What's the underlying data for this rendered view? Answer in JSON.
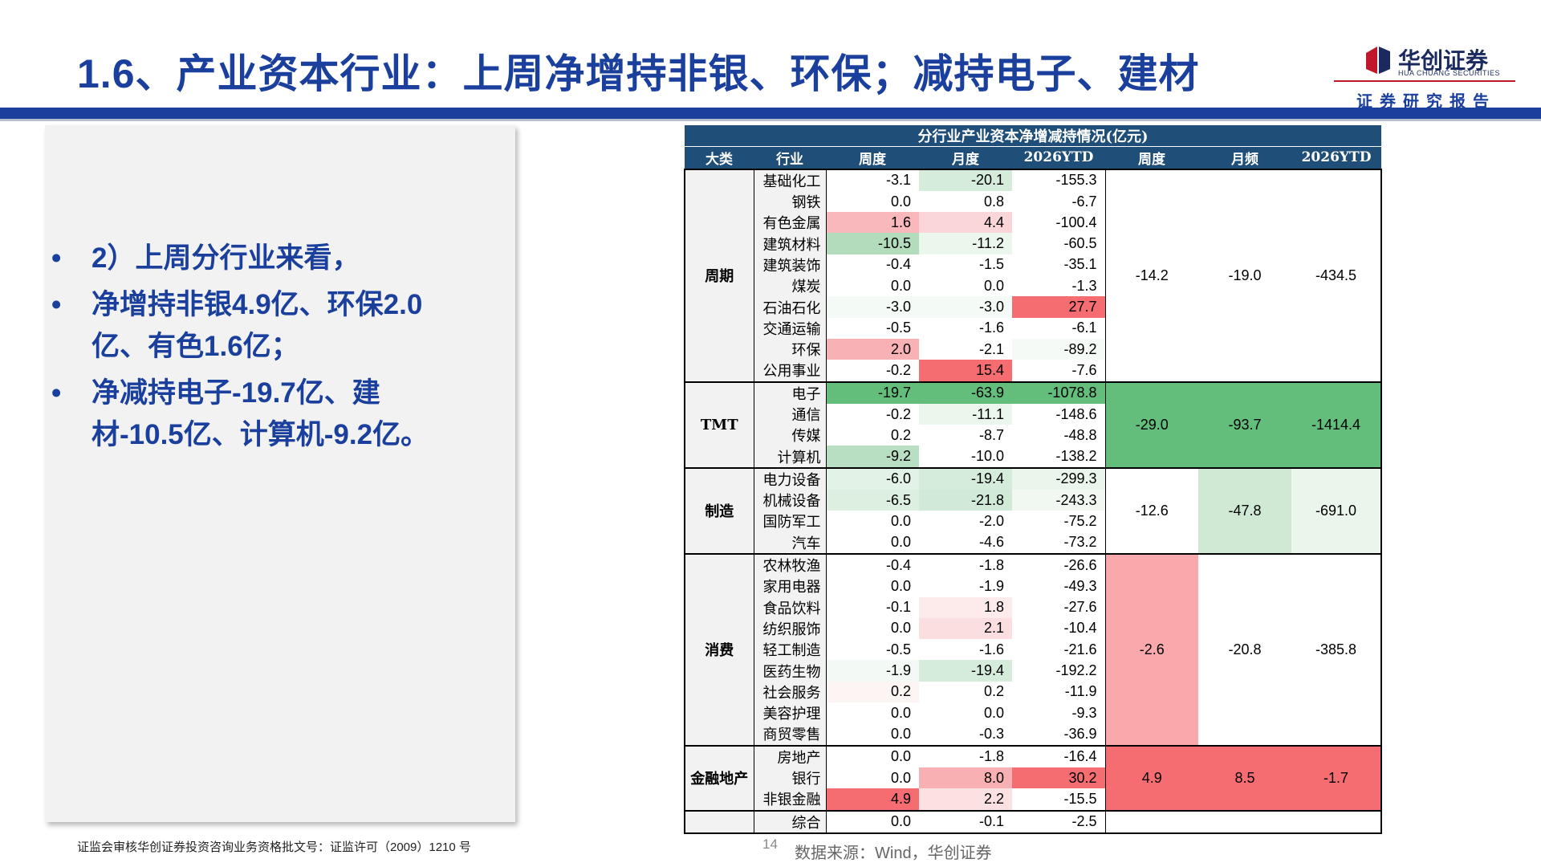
{
  "header": {
    "title": "1.6、产业资本行业：上周净增持非银、环保；减持电子、建材",
    "logo_cn": "华创证券",
    "logo_en": "HUA CHUANG SECURITIES",
    "report_label": "证券研究报告"
  },
  "bullets": [
    "2）上周分行业来看，",
    "净增持非银4.9亿、环保2.0亿、有色1.6亿；",
    "净减持电子-19.7亿、建材-10.5亿、计算机-9.2亿。"
  ],
  "table": {
    "title": "分行业产业资本净增减持情况(亿元)",
    "headers": [
      "大类",
      "行业",
      "周度",
      "月度",
      "2026YTD",
      "周度",
      "月频",
      "2026YTD"
    ],
    "groups": [
      {
        "category": "周期",
        "summary": {
          "week": "-14.2",
          "month": "-19.0",
          "ytd": "-434.5",
          "week_color": "#ffffff",
          "month_color": "#ffffff",
          "ytd_color": "#ffffff"
        },
        "rows": [
          {
            "industry": "基础化工",
            "week": "-3.1",
            "month": "-20.1",
            "ytd": "-155.3",
            "week_color": "#ffffff",
            "month_color": "#d4ecd9",
            "ytd_color": "#ffffff"
          },
          {
            "industry": "钢铁",
            "week": "0.0",
            "month": "0.8",
            "ytd": "-6.7",
            "week_color": "#ffffff",
            "month_color": "#ffffff",
            "ytd_color": "#ffffff"
          },
          {
            "industry": "有色金属",
            "week": "1.6",
            "month": "4.4",
            "ytd": "-100.4",
            "week_color": "#f9b9bc",
            "month_color": "#fbd6d8",
            "ytd_color": "#ffffff"
          },
          {
            "industry": "建筑材料",
            "week": "-10.5",
            "month": "-11.2",
            "ytd": "-60.5",
            "week_color": "#b3dcbd",
            "month_color": "#ebf6ed",
            "ytd_color": "#ffffff"
          },
          {
            "industry": "建筑装饰",
            "week": "-0.4",
            "month": "-1.5",
            "ytd": "-35.1",
            "week_color": "#ffffff",
            "month_color": "#ffffff",
            "ytd_color": "#ffffff"
          },
          {
            "industry": "煤炭",
            "week": "0.0",
            "month": "0.0",
            "ytd": "-1.3",
            "week_color": "#ffffff",
            "month_color": "#ffffff",
            "ytd_color": "#ffffff"
          },
          {
            "industry": "石油石化",
            "week": "-3.0",
            "month": "-3.0",
            "ytd": "27.7",
            "week_color": "#f4faf5",
            "month_color": "#f4faf5",
            "ytd_color": "#f66d71"
          },
          {
            "industry": "交通运输",
            "week": "-0.5",
            "month": "-1.6",
            "ytd": "-6.1",
            "week_color": "#ffffff",
            "month_color": "#ffffff",
            "ytd_color": "#ffffff"
          },
          {
            "industry": "环保",
            "week": "2.0",
            "month": "-2.1",
            "ytd": "-89.2",
            "week_color": "#f8b1b4",
            "month_color": "#ffffff",
            "ytd_color": "#f5faf6"
          },
          {
            "industry": "公用事业",
            "week": "-0.2",
            "month": "15.4",
            "ytd": "-7.6",
            "week_color": "#ffffff",
            "month_color": "#f66d71",
            "ytd_color": "#ffffff"
          }
        ]
      },
      {
        "category": "TMT",
        "summary": {
          "week": "-29.0",
          "month": "-93.7",
          "ytd": "-1414.4",
          "week_color": "#63be7b",
          "month_color": "#63be7b",
          "ytd_color": "#63be7b"
        },
        "rows": [
          {
            "industry": "电子",
            "week": "-19.7",
            "month": "-63.9",
            "ytd": "-1078.8",
            "week_color": "#63be7b",
            "month_color": "#63be7b",
            "ytd_color": "#63be7b"
          },
          {
            "industry": "通信",
            "week": "-0.2",
            "month": "-11.1",
            "ytd": "-148.6",
            "week_color": "#ffffff",
            "month_color": "#ebf6ed",
            "ytd_color": "#ffffff"
          },
          {
            "industry": "传媒",
            "week": "0.2",
            "month": "-8.7",
            "ytd": "-48.8",
            "week_color": "#ffffff",
            "month_color": "#ffffff",
            "ytd_color": "#ffffff"
          },
          {
            "industry": "计算机",
            "week": "-9.2",
            "month": "-10.0",
            "ytd": "-138.2",
            "week_color": "#b9dfc3",
            "month_color": "#ffffff",
            "ytd_color": "#ffffff"
          }
        ]
      },
      {
        "category": "制造",
        "summary": {
          "week": "-12.6",
          "month": "-47.8",
          "ytd": "-691.0",
          "week_color": "#ffffff",
          "month_color": "#cfe9d5",
          "ytd_color": "#eaf5ec"
        },
        "rows": [
          {
            "industry": "电力设备",
            "week": "-6.0",
            "month": "-19.4",
            "ytd": "-299.3",
            "week_color": "#e3f2e6",
            "month_color": "#d6ecdb",
            "ytd_color": "#eaf5ec"
          },
          {
            "industry": "机械设备",
            "week": "-6.5",
            "month": "-21.8",
            "ytd": "-243.3",
            "week_color": "#dcefe0",
            "month_color": "#d1ead7",
            "ytd_color": "#f1f8f2"
          },
          {
            "industry": "国防军工",
            "week": "0.0",
            "month": "-2.0",
            "ytd": "-75.2",
            "week_color": "#ffffff",
            "month_color": "#ffffff",
            "ytd_color": "#ffffff"
          },
          {
            "industry": "汽车",
            "week": "0.0",
            "month": "-4.6",
            "ytd": "-73.2",
            "week_color": "#ffffff",
            "month_color": "#ffffff",
            "ytd_color": "#ffffff"
          }
        ]
      },
      {
        "category": "消费",
        "summary": {
          "week": "-2.6",
          "month": "-20.8",
          "ytd": "-385.8",
          "week_color": "#f9a9ac",
          "month_color": "#ffffff",
          "ytd_color": "#ffffff"
        },
        "rows": [
          {
            "industry": "农林牧渔",
            "week": "-0.4",
            "month": "-1.8",
            "ytd": "-26.6",
            "week_color": "#ffffff",
            "month_color": "#ffffff",
            "ytd_color": "#ffffff"
          },
          {
            "industry": "家用电器",
            "week": "0.0",
            "month": "-1.9",
            "ytd": "-49.3",
            "week_color": "#ffffff",
            "month_color": "#ffffff",
            "ytd_color": "#ffffff"
          },
          {
            "industry": "食品饮料",
            "week": "-0.1",
            "month": "1.8",
            "ytd": "-27.6",
            "week_color": "#ffffff",
            "month_color": "#fdeaeb",
            "ytd_color": "#ffffff"
          },
          {
            "industry": "纺织服饰",
            "week": "0.0",
            "month": "2.1",
            "ytd": "-10.4",
            "week_color": "#ffffff",
            "month_color": "#fbdfe0",
            "ytd_color": "#ffffff"
          },
          {
            "industry": "轻工制造",
            "week": "-0.5",
            "month": "-1.6",
            "ytd": "-21.6",
            "week_color": "#ffffff",
            "month_color": "#ffffff",
            "ytd_color": "#ffffff"
          },
          {
            "industry": "医药生物",
            "week": "-1.9",
            "month": "-19.4",
            "ytd": "-192.2",
            "week_color": "#f3f9f4",
            "month_color": "#d6ecdb",
            "ytd_color": "#ffffff"
          },
          {
            "industry": "社会服务",
            "week": "0.2",
            "month": "0.2",
            "ytd": "-11.9",
            "week_color": "#fdf4f4",
            "month_color": "#ffffff",
            "ytd_color": "#ffffff"
          },
          {
            "industry": "美容护理",
            "week": "0.0",
            "month": "0.0",
            "ytd": "-9.3",
            "week_color": "#ffffff",
            "month_color": "#ffffff",
            "ytd_color": "#ffffff"
          },
          {
            "industry": "商贸零售",
            "week": "0.0",
            "month": "-0.3",
            "ytd": "-36.9",
            "week_color": "#ffffff",
            "month_color": "#ffffff",
            "ytd_color": "#ffffff"
          }
        ]
      },
      {
        "category": "金融地产",
        "summary": {
          "week": "4.9",
          "month": "8.5",
          "ytd": "-1.7",
          "week_color": "#f66d71",
          "month_color": "#f66d71",
          "ytd_color": "#f66d71"
        },
        "rows": [
          {
            "industry": "房地产",
            "week": "0.0",
            "month": "-1.8",
            "ytd": "-16.4",
            "week_color": "#ffffff",
            "month_color": "#ffffff",
            "ytd_color": "#ffffff"
          },
          {
            "industry": "银行",
            "week": "0.0",
            "month": "8.0",
            "ytd": "30.2",
            "week_color": "#ffffff",
            "month_color": "#f9b0b3",
            "ytd_color": "#f66d71"
          },
          {
            "industry": "非银金融",
            "week": "4.9",
            "month": "2.2",
            "ytd": "-15.5",
            "week_color": "#f66d71",
            "month_color": "#fce1e2",
            "ytd_color": "#ffffff"
          }
        ]
      },
      {
        "category": "",
        "summary": null,
        "rows": [
          {
            "industry": "综合",
            "week": "0.0",
            "month": "-0.1",
            "ytd": "-2.5",
            "week_color": "#ffffff",
            "month_color": "#ffffff",
            "ytd_color": "#ffffff"
          }
        ]
      }
    ]
  },
  "footer": {
    "license": "证监会审核华创证券投资咨询业务资格批文号：证监许可（2009）1210 号",
    "page": "14",
    "source": "数据来源：Wind，华创证券"
  },
  "colors": {
    "title_blue": "#1a3f9c",
    "header_navy": "#1f4e79",
    "logo_red": "#c0172c",
    "positive_red": "#f66d71",
    "negative_green": "#63be7b"
  }
}
